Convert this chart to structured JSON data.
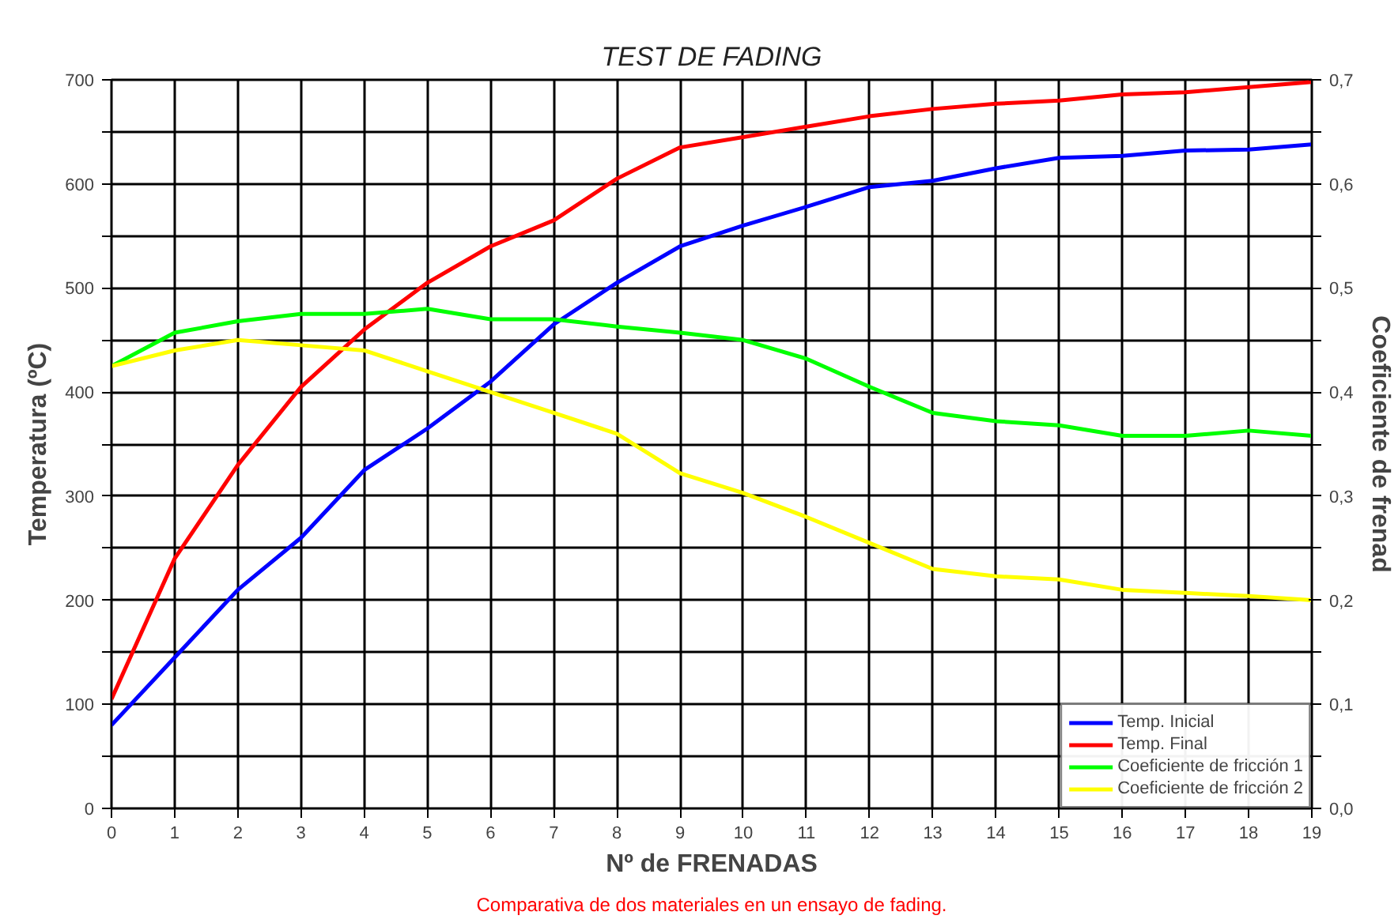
{
  "chart_data": {
    "type": "line",
    "title": "TEST DE FADING",
    "xlabel": "Nº de FRENADAS",
    "ylabel": "Temperatura (ºC)",
    "y2label": "Coeficiente de frenad",
    "x": [
      0,
      1,
      2,
      3,
      4,
      5,
      6,
      7,
      8,
      9,
      10,
      11,
      12,
      13,
      14,
      15,
      16,
      17,
      18,
      19
    ],
    "series": [
      {
        "name": "Temp. Inicial",
        "color": "#0000ff",
        "values": [
          80,
          145,
          210,
          260,
          325,
          365,
          410,
          465,
          505,
          540,
          560,
          578,
          597,
          603,
          615,
          625,
          627,
          632,
          633,
          638
        ]
      },
      {
        "name": "Temp. Final",
        "color": "#ff0000",
        "values": [
          105,
          240,
          330,
          405,
          460,
          505,
          540,
          565,
          605,
          635,
          645,
          655,
          665,
          672,
          677,
          680,
          686,
          688,
          693,
          698
        ]
      },
      {
        "name": "Coeficiente de fricción 1",
        "color": "#00ff00",
        "axis": "y2",
        "values": [
          0.425,
          0.457,
          0.468,
          0.475,
          0.475,
          0.48,
          0.47,
          0.47,
          0.463,
          0.457,
          0.45,
          0.432,
          0.405,
          0.38,
          0.372,
          0.368,
          0.358,
          0.358,
          0.363,
          0.358
        ]
      },
      {
        "name": "Coeficiente de fricción 2",
        "color": "#ffff00",
        "axis": "y2",
        "values": [
          0.425,
          0.44,
          0.45,
          0.445,
          0.44,
          0.42,
          0.4,
          0.38,
          0.36,
          0.322,
          0.303,
          0.28,
          0.255,
          0.23,
          0.223,
          0.22,
          0.21,
          0.207,
          0.204,
          0.2
        ]
      }
    ],
    "xlim": [
      0,
      19
    ],
    "xticks": [
      0,
      1,
      2,
      3,
      4,
      5,
      6,
      7,
      8,
      9,
      10,
      11,
      12,
      13,
      14,
      15,
      16,
      17,
      18,
      19
    ],
    "ylim": [
      0,
      700
    ],
    "yticks": [
      0,
      {
        "value": 50,
        "label": null
      },
      100,
      {
        "value": 150,
        "label": null
      },
      200,
      {
        "value": 250,
        "label": null
      },
      300,
      {
        "value": 350,
        "label": null
      },
      400,
      {
        "value": 450,
        "label": null
      },
      500,
      {
        "value": 550,
        "label": null
      },
      600,
      {
        "value": 650,
        "label": null
      },
      700
    ],
    "y2lim": [
      0,
      0.7
    ],
    "y2ticks": [
      {
        "value": 0,
        "label": "0,0"
      },
      {
        "value": 0.05,
        "label": null
      },
      {
        "value": 0.1,
        "label": "0,1"
      },
      {
        "value": 0.15,
        "label": null
      },
      {
        "value": 0.2,
        "label": "0,2"
      },
      {
        "value": 0.25,
        "label": null
      },
      {
        "value": 0.3,
        "label": "0,3"
      },
      {
        "value": 0.35,
        "label": null
      },
      {
        "value": 0.4,
        "label": "0,4"
      },
      {
        "value": 0.45,
        "label": null
      },
      {
        "value": 0.5,
        "label": "0,5"
      },
      {
        "value": 0.55,
        "label": null
      },
      {
        "value": 0.6,
        "label": "0,6"
      },
      {
        "value": 0.65,
        "label": null
      },
      {
        "value": 0.7,
        "label": "0,7"
      }
    ],
    "grid": true,
    "legend": "bottom right",
    "line_style": "solid",
    "annotations": [
      "Comparativa de dos materiales en un ensayo de fading."
    ]
  }
}
